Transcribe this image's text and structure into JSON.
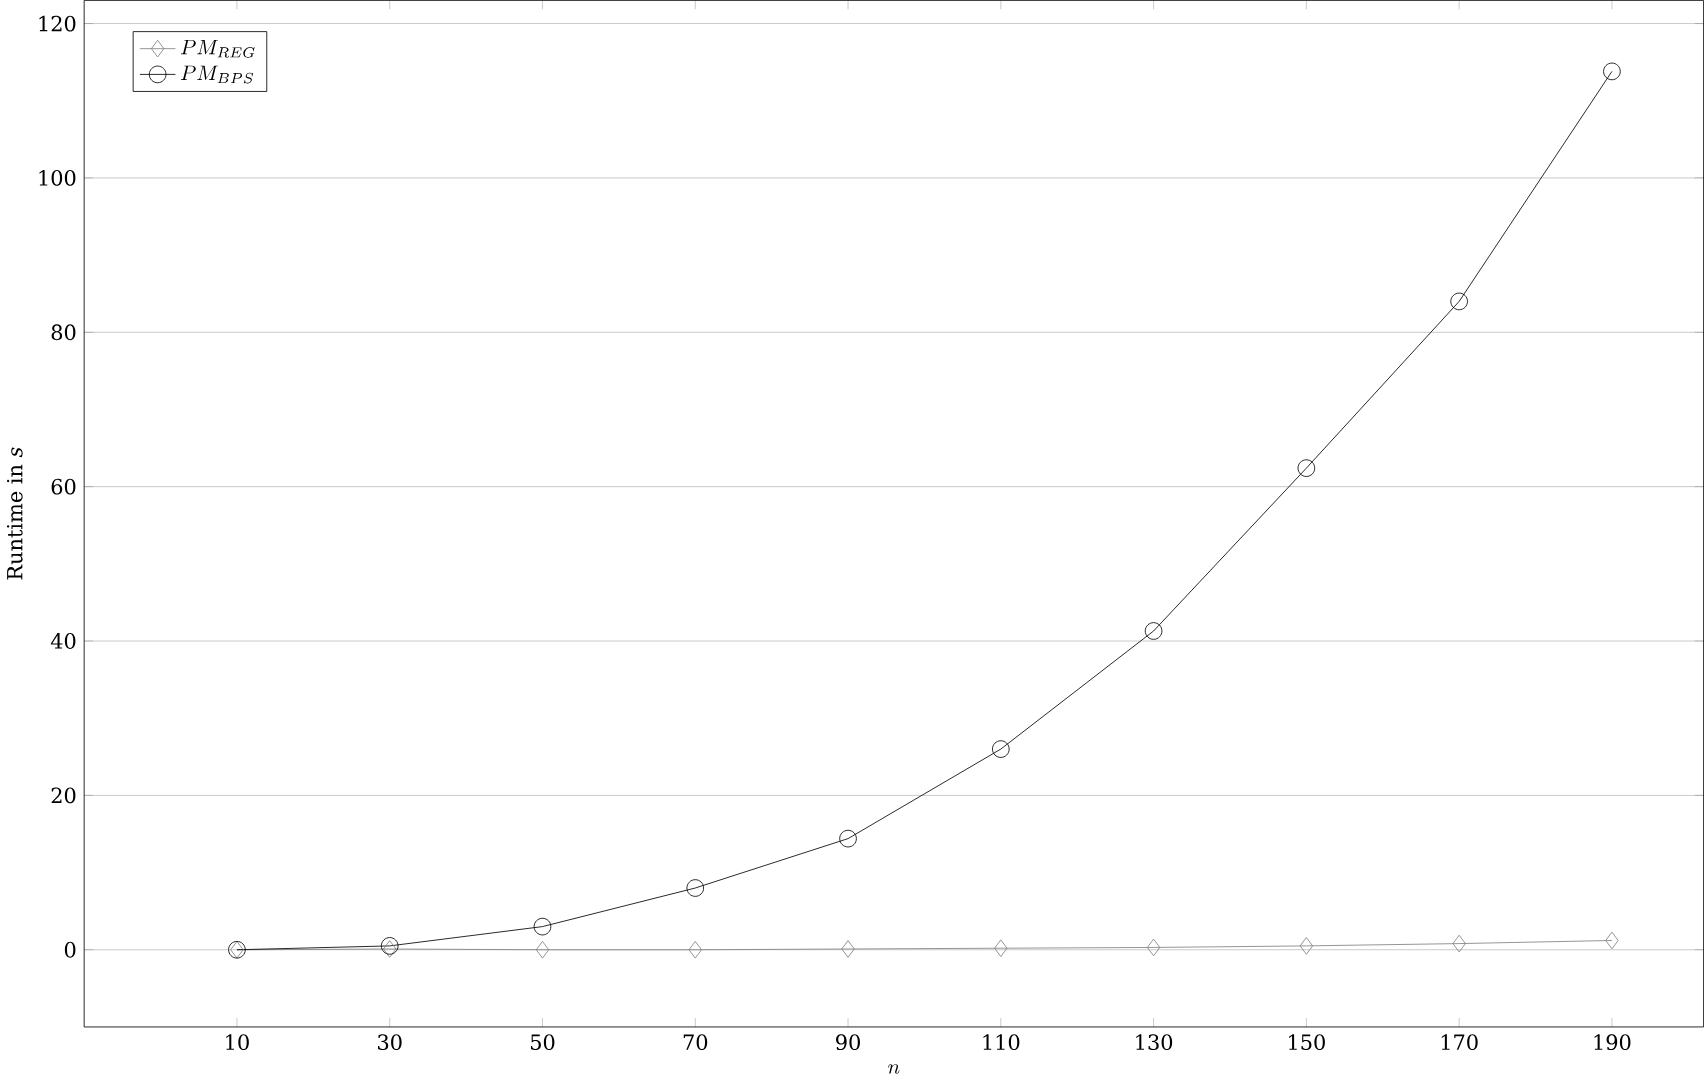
{
  "chart_data": {
    "type": "line",
    "xlabel": "n",
    "ylabel": "Runtime in *s*",
    "x": [
      10,
      30,
      50,
      70,
      90,
      110,
      130,
      150,
      170,
      190
    ],
    "series": [
      {
        "name": "PM_{REG}",
        "color": "#808080",
        "marker": "diamond",
        "values": [
          0,
          0.1,
          0,
          0,
          0.1,
          0.2,
          0.3,
          0.5,
          0.8,
          1.2
        ]
      },
      {
        "name": "PM_{BPS}",
        "color": "#000000",
        "marker": "circle",
        "values": [
          0,
          0.5,
          3.0,
          8.0,
          14.4,
          26.0,
          41.3,
          62.4,
          84.0,
          113.8
        ]
      }
    ],
    "xlim": [
      -10,
      202
    ],
    "ylim": [
      -10,
      123
    ],
    "xticks": [
      10,
      30,
      50,
      70,
      90,
      110,
      130,
      150,
      170,
      190
    ],
    "yticks": [
      0,
      20,
      40,
      60,
      80,
      100,
      120
    ],
    "grid": "y",
    "legend": "top left",
    "line_style": "solid"
  }
}
